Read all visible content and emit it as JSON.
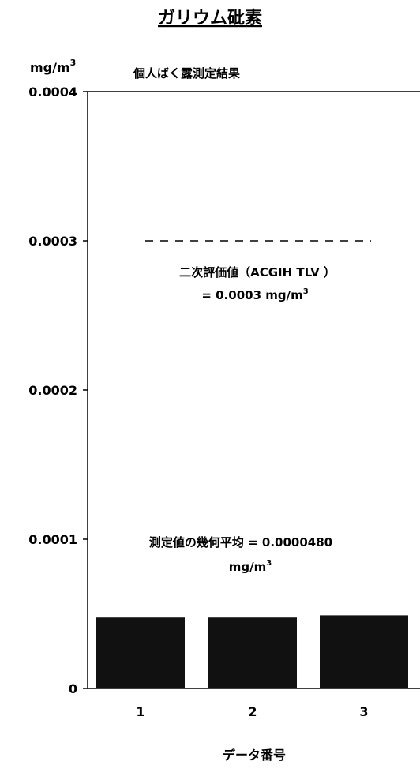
{
  "chart_data": {
    "type": "bar",
    "title": "ガリウム砒素",
    "subtitle": "個人ばく露測定結果",
    "ylabel_unit": "mg/m",
    "ylabel_unit_sup": "3",
    "xlabel": "データ番号",
    "categories": [
      "1",
      "2",
      "3"
    ],
    "values": [
      4.75e-05,
      4.75e-05,
      4.9e-05
    ],
    "ylim": [
      0,
      0.0004
    ],
    "yticks": [
      "0",
      "0.0001",
      "0.0002",
      "0.0003",
      "0.0004"
    ],
    "ytick_values": [
      0,
      0.0001,
      0.0002,
      0.0003,
      0.0004
    ],
    "bar_color": "#111111",
    "reference_line": {
      "value": 0.0003,
      "style": "dashed",
      "label_line1": "二次評価値（ACGIH TLV ）",
      "label_line2": "= 0.0003 mg/m",
      "label_line2_sup": "3"
    },
    "annotation": {
      "line1": "測定値の幾何平均 = 0.0000480",
      "line2": "mg/m",
      "line2_sup": "3"
    },
    "grid": false,
    "legend": "none"
  }
}
